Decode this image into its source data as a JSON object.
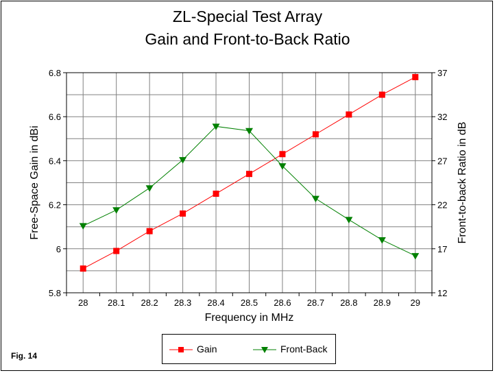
{
  "figure_label": "Fig. 14",
  "chart_data": {
    "type": "line",
    "title": "ZL-Special Test Array",
    "subtitle": "Gain and Front-to-Back Ratio",
    "xlabel": "Frequency in MHz",
    "ylabel_left": "Free-Space Gain in dBi",
    "ylabel_right": "Front-to-back Ratio in dB",
    "categories": [
      "28",
      "28.1",
      "28.2",
      "28.3",
      "28.4",
      "28.5",
      "28.6",
      "28.7",
      "28.8",
      "28.9",
      "29"
    ],
    "y_left_ticks": [
      "5.8",
      "6",
      "6.2",
      "6.4",
      "6.6",
      "6.8"
    ],
    "y_right_ticks": [
      "12",
      "17",
      "22",
      "27",
      "32",
      "37"
    ],
    "ylim_left": [
      5.8,
      6.8
    ],
    "ylim_right": [
      12,
      37
    ],
    "grid": true,
    "legend_position": "bottom",
    "series": [
      {
        "name": "Gain",
        "axis": "left",
        "color": "#ff0000",
        "marker": "square",
        "values": [
          5.91,
          5.99,
          6.08,
          6.16,
          6.25,
          6.34,
          6.43,
          6.52,
          6.61,
          6.7,
          6.78
        ]
      },
      {
        "name": "Front-Back",
        "axis": "right",
        "color": "#008000",
        "marker": "triangle-down",
        "values": [
          19.6,
          21.4,
          23.9,
          27.1,
          30.9,
          30.4,
          26.4,
          22.7,
          20.3,
          18.0,
          16.2
        ]
      }
    ]
  }
}
